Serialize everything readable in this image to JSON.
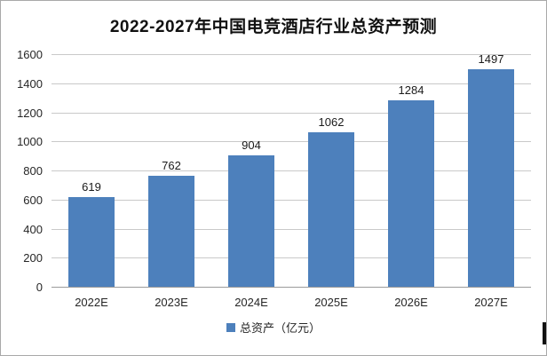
{
  "chart_data": {
    "type": "bar",
    "title": "2022-2027年中国电竞酒店行业总资产预测",
    "categories": [
      "2022E",
      "2023E",
      "2024E",
      "2025E",
      "2026E",
      "2027E"
    ],
    "values": [
      619,
      762,
      904,
      1062,
      1284,
      1497
    ],
    "series_name": "总资产（亿元）",
    "legend_label": "总资产（亿元）",
    "xlabel": "",
    "ylabel": "",
    "ylim": [
      0,
      1600
    ],
    "yticks": [
      0,
      200,
      400,
      600,
      800,
      1000,
      1200,
      1400,
      1600
    ],
    "grid": true,
    "legend_position": "bottom",
    "data_labels": true,
    "colors": {
      "bar": "#4d80bc",
      "gridline": "#c9c9c9",
      "axis_line": "#9b9b9b",
      "text": "#262626",
      "title_text": "#111111",
      "frame_border": "#a9a9a9"
    }
  }
}
